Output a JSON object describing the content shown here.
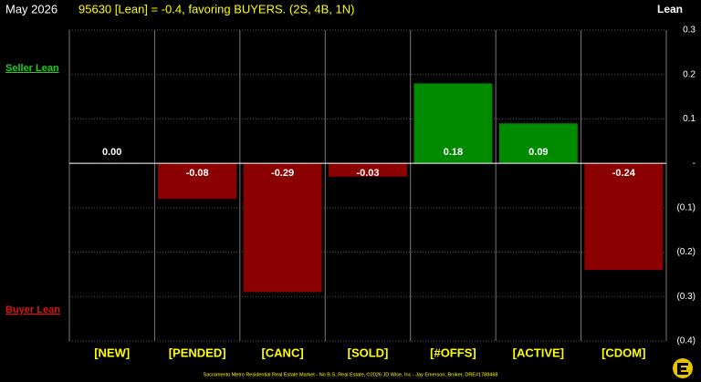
{
  "chart_data": {
    "type": "bar",
    "period": "May 2026",
    "title": "95630 [Lean] = -0.4, favoring BUYERS. (2S, 4B, 1N)",
    "y_label": "Lean",
    "upper_label": "Seller Lean",
    "lower_label": "Buyer Lean",
    "footer": "Sacramento Metro Residential Real Estate Market - No B.S. Real Estate, ©2026 JD Wise, Inc - Jay Emerson, Broker, DRE#1788468",
    "categories": [
      "[NEW]",
      "[PENDED]",
      "[CANC]",
      "[SOLD]",
      "[#OFFS]",
      "[ACTIVE]",
      "[CDOM]"
    ],
    "values": [
      0,
      -0.08,
      -0.29,
      -0.03,
      0.18,
      0.09,
      -0.24
    ],
    "value_labels": [
      "0.00",
      "-0.08",
      "-0.29",
      "-0.03",
      "0.18",
      "0.09",
      "-0.24"
    ],
    "positive_color": "#008a00",
    "negative_color": "#8b0000",
    "ylim": [
      -0.4,
      0.3
    ],
    "yticks": [
      0.3,
      0.2,
      0.1,
      {
        "value": 0,
        "label": "-"
      },
      {
        "value": -0.1,
        "label": "(0.1)"
      },
      {
        "value": -0.2,
        "label": "(0.2)"
      },
      {
        "value": -0.3,
        "label": "(0.3)"
      },
      {
        "value": -0.4,
        "label": "(0.4)"
      }
    ],
    "grid": true
  }
}
